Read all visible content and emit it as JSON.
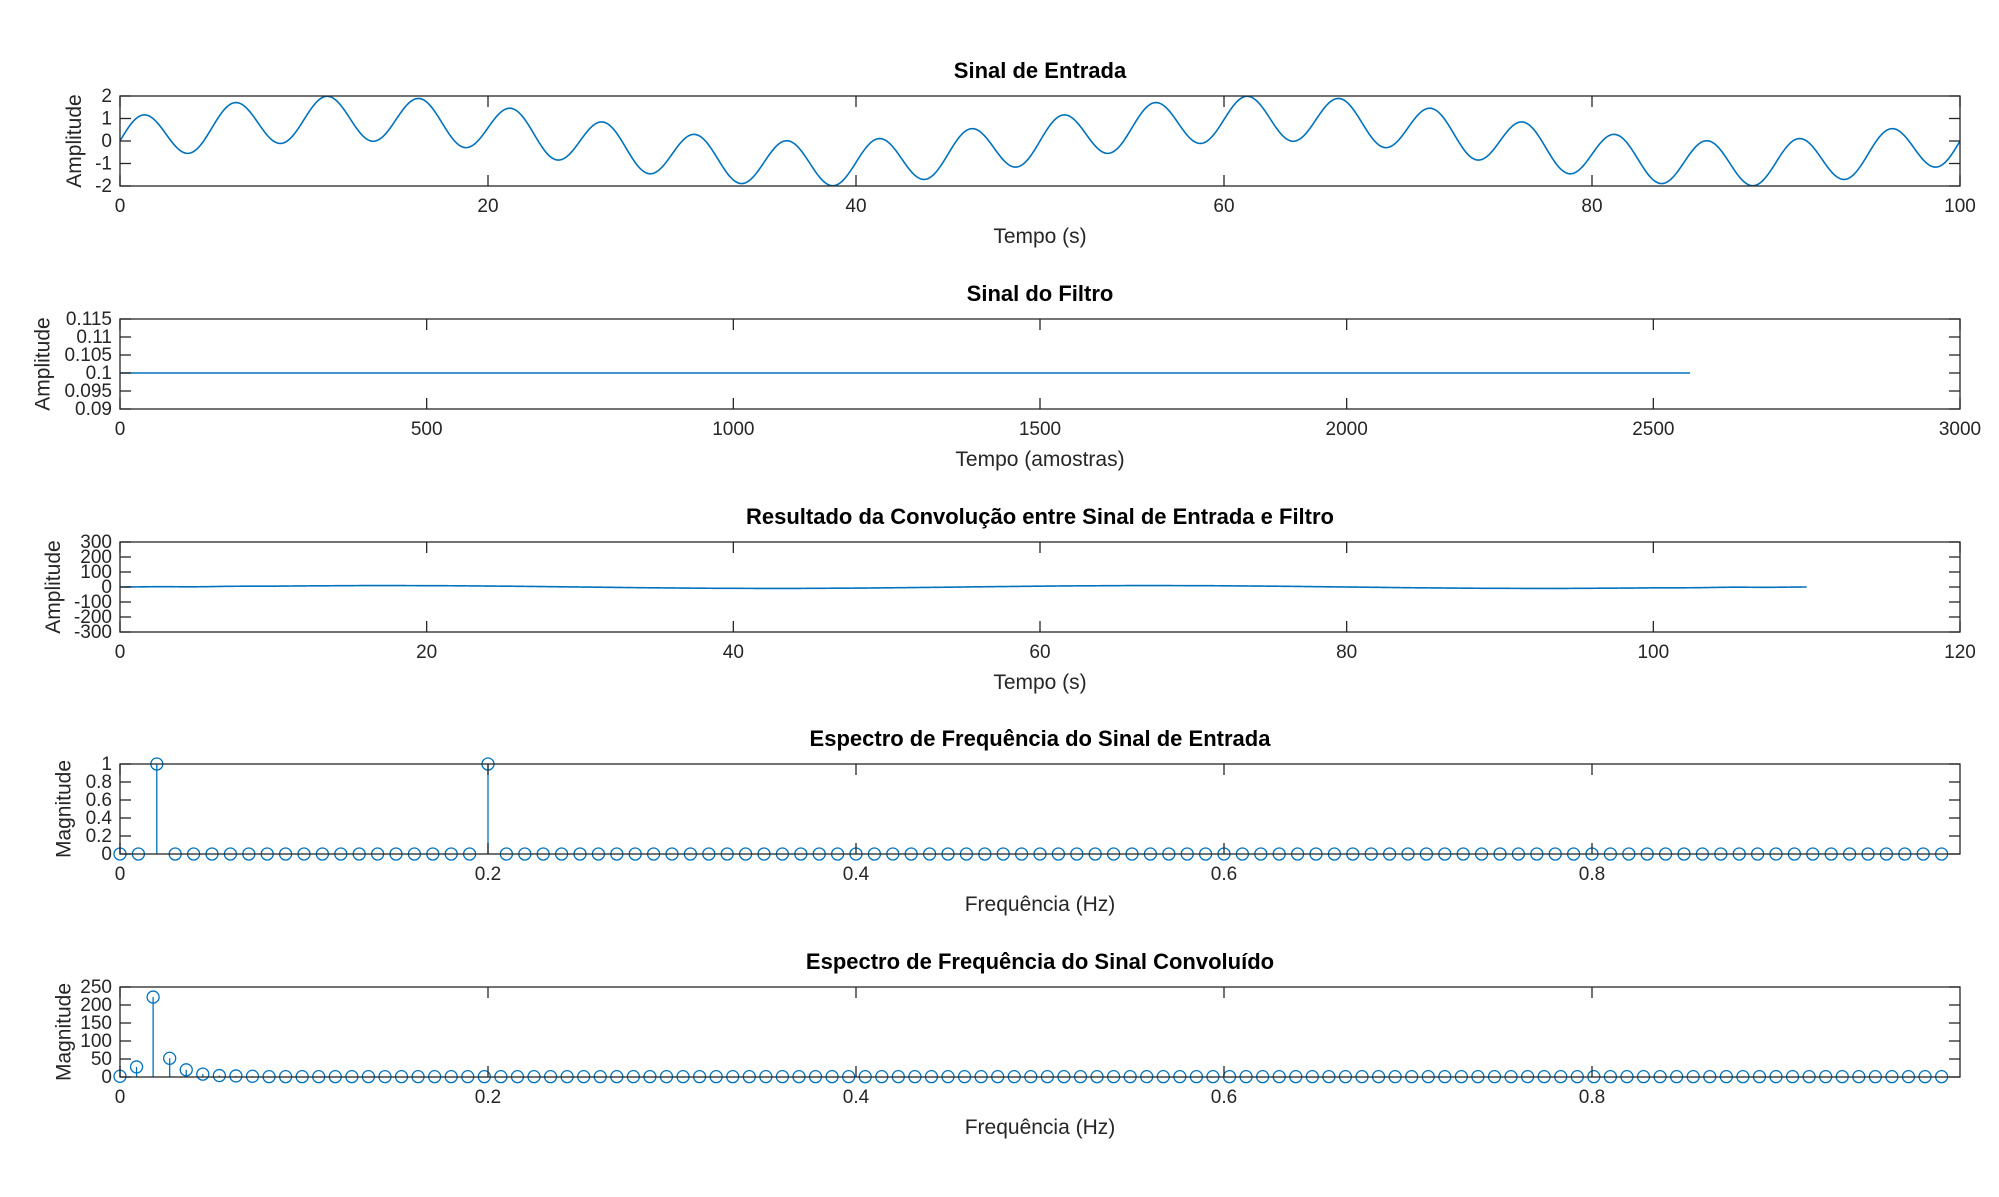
{
  "chart_data": [
    {
      "type": "line",
      "title": "Sinal de Entrada",
      "xlabel": "Tempo (s)",
      "ylabel": "Amplitude",
      "xlim": [
        0,
        100
      ],
      "ylim": [
        -2,
        2
      ],
      "xticks": [
        0,
        20,
        40,
        60,
        80,
        100
      ],
      "yticks": [
        -2,
        -1,
        0,
        1,
        2
      ],
      "xtick_labels": [
        "0",
        "20",
        "40",
        "60",
        "80",
        "100"
      ],
      "ytick_labels": [
        "-2",
        "-1",
        "0",
        "1",
        "2"
      ],
      "grid": false,
      "color": "#0072bd",
      "series": [
        {
          "function": "sin(2*pi*0.02*t)+sin(2*pi*0.2*t)",
          "x_start": 0,
          "x_end": 100,
          "x_step": 0.1
        }
      ]
    },
    {
      "type": "line",
      "title": "Sinal do Filtro",
      "xlabel": "Tempo (amostras)",
      "ylabel": "Amplitude",
      "xlim": [
        0,
        3000
      ],
      "ylim": [
        0.09,
        0.115
      ],
      "xticks": [
        0,
        500,
        1000,
        1500,
        2000,
        2500,
        3000
      ],
      "yticks": [
        0.09,
        0.095,
        0.1,
        0.105,
        0.11,
        0.115
      ],
      "xtick_labels": [
        "0",
        "500",
        "1000",
        "1500",
        "2000",
        "2500",
        "3000"
      ],
      "ytick_labels": [
        "0.09",
        "0.095",
        "0.1",
        "0.105",
        "0.11",
        "0.115"
      ],
      "grid": false,
      "color": "#0072bd",
      "series": [
        {
          "x": [
            0,
            2560
          ],
          "y": [
            0.1,
            0.1
          ]
        }
      ]
    },
    {
      "type": "line",
      "title": "Resultado da Convolução entre Sinal de Entrada e Filtro",
      "xlabel": "Tempo (s)",
      "ylabel": "Amplitude",
      "xlim": [
        0,
        120
      ],
      "ylim": [
        -300,
        300
      ],
      "xticks": [
        0,
        20,
        40,
        60,
        80,
        100,
        120
      ],
      "yticks": [
        -300,
        -200,
        -100,
        0,
        100,
        200,
        300
      ],
      "xtick_labels": [
        "0",
        "20",
        "40",
        "60",
        "80",
        "100",
        "120"
      ],
      "ytick_labels": [
        "-300",
        "-200",
        "-100",
        "0",
        "100",
        "200",
        "300"
      ],
      "grid": false,
      "color": "#0072bd",
      "series": [
        {
          "function": "conv(sin(2*pi*0.02*t)+sin(2*pi*0.2*t), 0.1*ones(1,101))",
          "x_start": 0,
          "x_end": 110,
          "x_step": 0.1
        }
      ]
    },
    {
      "type": "stem",
      "title": "Espectro de Frequência do Sinal de Entrada",
      "xlabel": "Frequência (Hz)",
      "ylabel": "Magnitude",
      "xlim": [
        0,
        1
      ],
      "ylim": [
        0,
        1
      ],
      "xticks": [
        0,
        0.2,
        0.4,
        0.6,
        0.8
      ],
      "yticks": [
        0,
        0.2,
        0.4,
        0.6,
        0.8,
        1
      ],
      "xtick_labels": [
        "0",
        "0.2",
        "0.4",
        "0.6",
        "0.8"
      ],
      "ytick_labels": [
        "0",
        "0.2",
        "0.4",
        "0.6",
        "0.8",
        "1"
      ],
      "grid": false,
      "color": "#0072bd",
      "series": [
        {
          "x_start": 0,
          "x_step": 0.01,
          "count": 100,
          "values_nonzero": {
            "2": 1,
            "20": 1
          },
          "default": 0
        }
      ]
    },
    {
      "type": "stem",
      "title": "Espectro de Frequência do Sinal Convoluído",
      "xlabel": "Frequência (Hz)",
      "ylabel": "Magnitude",
      "xlim": [
        0,
        1
      ],
      "ylim": [
        0,
        250
      ],
      "xticks": [
        0,
        0.2,
        0.4,
        0.6,
        0.8
      ],
      "yticks": [
        0,
        50,
        100,
        150,
        200,
        250
      ],
      "xtick_labels": [
        "0",
        "0.2",
        "0.4",
        "0.6",
        "0.8"
      ],
      "ytick_labels": [
        "0",
        "50",
        "100",
        "150",
        "200",
        "250"
      ],
      "grid": false,
      "color": "#0072bd",
      "series": [
        {
          "x_start": 0,
          "x_step": 0.009,
          "count": 111,
          "values_nonzero": {
            "0": 2,
            "1": 28,
            "2": 222,
            "3": 52,
            "4": 20,
            "5": 8,
            "6": 4,
            "7": 3,
            "8": 2
          },
          "default": 1
        }
      ]
    }
  ]
}
